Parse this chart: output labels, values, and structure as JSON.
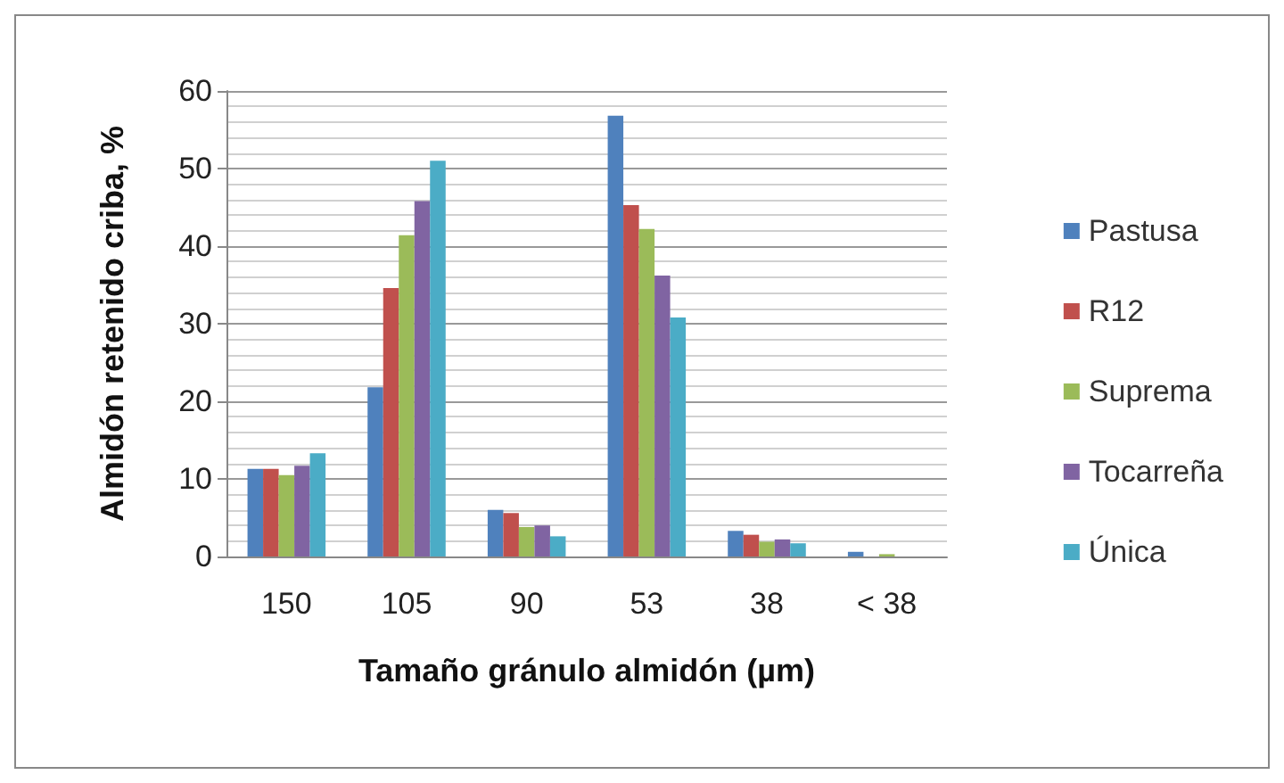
{
  "chart_data": {
    "type": "bar",
    "xlabel": "Tamaño gránulo almidón (µm)",
    "ylabel": "Almidón retenido criba, %",
    "categories": [
      "150",
      "105",
      "90",
      "53",
      "38",
      "< 38"
    ],
    "series": [
      {
        "name": "Pastusa",
        "color": "#4f81bd",
        "values": [
          11.3,
          21.8,
          6,
          56.8,
          3.3,
          0.6
        ]
      },
      {
        "name": "R12",
        "color": "#c0504d",
        "values": [
          11.3,
          34.6,
          5.6,
          45.3,
          2.8,
          0
        ]
      },
      {
        "name": "Suprema",
        "color": "#9bbb59",
        "values": [
          10.5,
          41.4,
          3.8,
          42.2,
          1.9,
          0.3
        ]
      },
      {
        "name": "Tocarreña",
        "color": "#8064a2",
        "values": [
          11.7,
          45.8,
          4,
          36.2,
          2.2,
          0
        ]
      },
      {
        "name": "Única",
        "color": "#4bacc6",
        "values": [
          13.3,
          51,
          2.6,
          30.8,
          1.7,
          0
        ]
      }
    ],
    "ylim": [
      0,
      60
    ],
    "yticks": [
      0,
      10,
      20,
      30,
      40,
      50,
      60
    ],
    "grid": "y",
    "legend": "right"
  }
}
